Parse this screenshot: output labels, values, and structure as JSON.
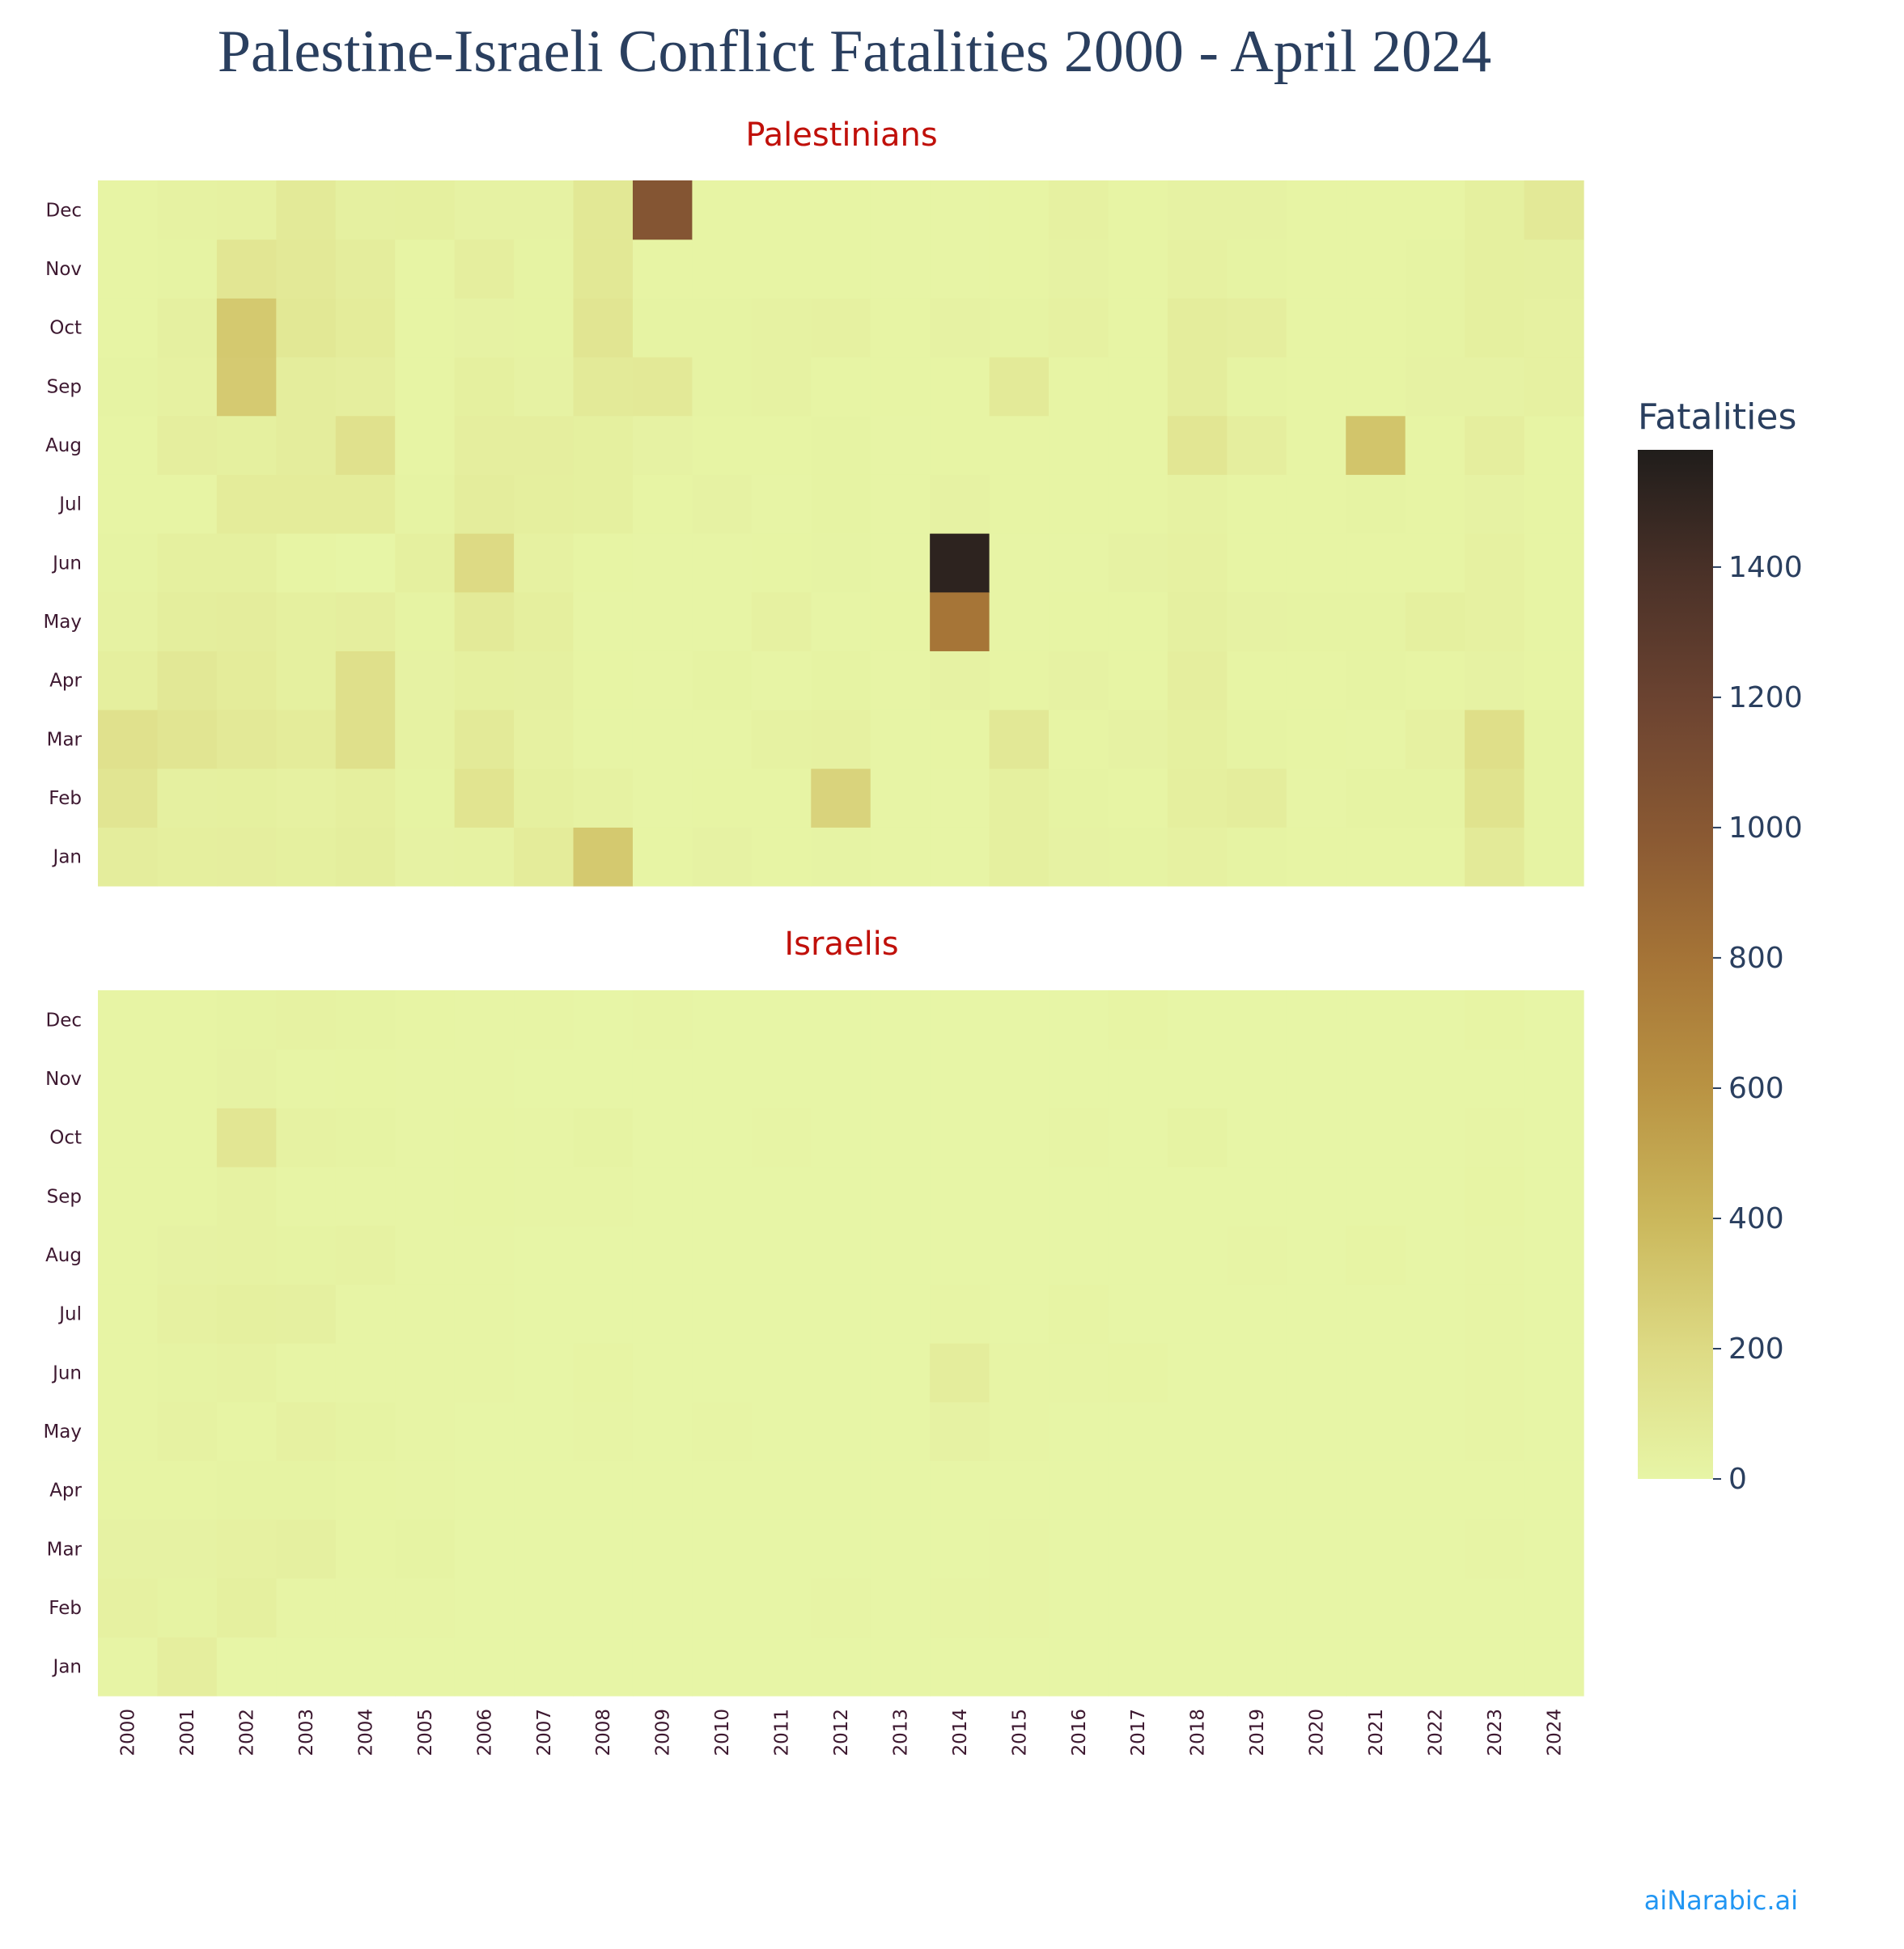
{
  "chart_data": {
    "type": "heatmap",
    "title": "Palestine-Israeli Conflict Fatalities 2000 - April 2024",
    "x_categories": [
      "2000",
      "2001",
      "2002",
      "2003",
      "2004",
      "2005",
      "2006",
      "2007",
      "2008",
      "2009",
      "2010",
      "2011",
      "2012",
      "2013",
      "2014",
      "2015",
      "2016",
      "2017",
      "2018",
      "2019",
      "2020",
      "2021",
      "2022",
      "2023",
      "2024"
    ],
    "y_categories": [
      "Jan",
      "Feb",
      "Mar",
      "Apr",
      "May",
      "Jun",
      "Jul",
      "Aug",
      "Sep",
      "Oct",
      "Nov",
      "Dec"
    ],
    "panels": [
      {
        "title": "Palestinians",
        "z": [
          [
            60,
            45,
            50,
            40,
            55,
            20,
            25,
            70,
            300,
            10,
            20,
            10,
            12,
            5,
            8,
            40,
            20,
            15,
            30,
            15,
            10,
            10,
            10,
            80,
            15
          ],
          [
            120,
            35,
            40,
            30,
            45,
            15,
            130,
            40,
            25,
            5,
            10,
            10,
            240,
            5,
            8,
            40,
            15,
            10,
            45,
            60,
            5,
            15,
            15,
            140,
            15
          ],
          [
            150,
            120,
            90,
            70,
            160,
            25,
            80,
            30,
            5,
            5,
            5,
            25,
            30,
            8,
            10,
            95,
            10,
            20,
            40,
            15,
            10,
            5,
            30,
            170,
            15
          ],
          [
            45,
            95,
            70,
            40,
            160,
            20,
            40,
            35,
            10,
            8,
            15,
            5,
            15,
            5,
            20,
            10,
            20,
            10,
            50,
            10,
            10,
            15,
            10,
            20,
            10
          ],
          [
            25,
            55,
            60,
            40,
            50,
            15,
            80,
            45,
            5,
            5,
            5,
            30,
            5,
            10,
            790,
            5,
            10,
            10,
            35,
            20,
            15,
            15,
            40,
            30,
            10
          ],
          [
            15,
            40,
            40,
            10,
            2,
            40,
            200,
            30,
            10,
            5,
            5,
            10,
            12,
            5,
            1520,
            5,
            5,
            20,
            30,
            10,
            10,
            10,
            10,
            30,
            10
          ],
          [
            10,
            10,
            70,
            70,
            70,
            15,
            60,
            45,
            40,
            10,
            20,
            5,
            15,
            5,
            20,
            10,
            10,
            10,
            25,
            10,
            10,
            15,
            10,
            20,
            10
          ],
          [
            10,
            50,
            40,
            60,
            150,
            10,
            50,
            50,
            40,
            20,
            10,
            10,
            15,
            5,
            10,
            10,
            10,
            10,
            110,
            50,
            10,
            320,
            10,
            50,
            10
          ],
          [
            15,
            30,
            290,
            60,
            50,
            10,
            40,
            20,
            80,
            90,
            15,
            25,
            10,
            10,
            10,
            80,
            10,
            10,
            60,
            15,
            10,
            10,
            20,
            20,
            30
          ],
          [
            10,
            35,
            300,
            100,
            70,
            10,
            20,
            15,
            120,
            15,
            15,
            25,
            30,
            10,
            20,
            15,
            30,
            10,
            60,
            50,
            10,
            10,
            15,
            40,
            30
          ],
          [
            10,
            15,
            110,
            90,
            60,
            10,
            50,
            15,
            100,
            10,
            10,
            10,
            10,
            5,
            5,
            10,
            20,
            10,
            30,
            15,
            10,
            10,
            15,
            40,
            35
          ],
          [
            10,
            25,
            30,
            80,
            35,
            40,
            20,
            20,
            100,
            1030,
            10,
            10,
            10,
            5,
            5,
            10,
            30,
            10,
            20,
            20,
            10,
            10,
            10,
            40,
            90
          ]
        ]
      },
      {
        "title": "Israelis",
        "z": [
          [
            5,
            50,
            2,
            2,
            2,
            2,
            2,
            2,
            2,
            2,
            2,
            2,
            2,
            2,
            2,
            2,
            2,
            2,
            2,
            2,
            2,
            2,
            2,
            2,
            2
          ],
          [
            30,
            15,
            40,
            5,
            5,
            5,
            2,
            2,
            2,
            2,
            2,
            2,
            5,
            2,
            5,
            5,
            2,
            2,
            2,
            2,
            2,
            2,
            2,
            2,
            2
          ],
          [
            20,
            20,
            30,
            35,
            10,
            15,
            2,
            2,
            2,
            2,
            2,
            2,
            2,
            2,
            2,
            5,
            2,
            2,
            2,
            2,
            2,
            2,
            2,
            5,
            2
          ],
          [
            10,
            10,
            15,
            15,
            10,
            5,
            2,
            2,
            2,
            2,
            2,
            2,
            2,
            2,
            2,
            2,
            2,
            2,
            2,
            2,
            2,
            2,
            2,
            2,
            2
          ],
          [
            10,
            25,
            10,
            30,
            15,
            5,
            2,
            2,
            5,
            2,
            5,
            2,
            2,
            2,
            20,
            5,
            2,
            2,
            2,
            2,
            2,
            2,
            2,
            5,
            2
          ],
          [
            10,
            15,
            25,
            5,
            5,
            5,
            5,
            2,
            10,
            2,
            2,
            2,
            2,
            2,
            60,
            5,
            5,
            10,
            2,
            2,
            2,
            2,
            2,
            5,
            2
          ],
          [
            10,
            30,
            40,
            35,
            5,
            5,
            5,
            2,
            2,
            2,
            2,
            2,
            2,
            2,
            5,
            2,
            10,
            2,
            2,
            2,
            2,
            2,
            2,
            5,
            2
          ],
          [
            10,
            20,
            25,
            15,
            25,
            5,
            5,
            2,
            2,
            2,
            2,
            2,
            2,
            2,
            2,
            2,
            2,
            2,
            2,
            5,
            2,
            10,
            2,
            5,
            2
          ],
          [
            10,
            10,
            25,
            5,
            5,
            5,
            10,
            5,
            5,
            2,
            2,
            2,
            2,
            2,
            2,
            2,
            2,
            2,
            2,
            2,
            2,
            2,
            2,
            10,
            2
          ],
          [
            10,
            10,
            110,
            25,
            15,
            5,
            10,
            5,
            15,
            2,
            2,
            5,
            2,
            2,
            2,
            2,
            5,
            2,
            15,
            2,
            2,
            2,
            2,
            5,
            2
          ],
          [
            10,
            10,
            20,
            5,
            10,
            5,
            5,
            2,
            2,
            2,
            2,
            2,
            2,
            2,
            2,
            2,
            2,
            2,
            2,
            2,
            2,
            2,
            2,
            2,
            2
          ],
          [
            10,
            10,
            15,
            25,
            15,
            10,
            5,
            5,
            2,
            5,
            2,
            2,
            2,
            2,
            2,
            2,
            2,
            10,
            2,
            2,
            2,
            2,
            2,
            10,
            2
          ]
        ]
      }
    ],
    "colorbar": {
      "title": "Fatalities",
      "range": [
        0,
        1580
      ],
      "ticks": [
        0,
        200,
        400,
        600,
        800,
        1000,
        1200,
        1400
      ],
      "colorscale": [
        [
          0.0,
          "#e7f5a6"
        ],
        [
          0.12,
          "#dedc86"
        ],
        [
          0.25,
          "#cbb85c"
        ],
        [
          0.38,
          "#b99343"
        ],
        [
          0.5,
          "#a67537"
        ],
        [
          0.62,
          "#8b5a33"
        ],
        [
          0.75,
          "#6d4431"
        ],
        [
          0.88,
          "#4a3128"
        ],
        [
          1.0,
          "#201d1b"
        ]
      ]
    }
  },
  "watermark": "aiNarabic.ai"
}
